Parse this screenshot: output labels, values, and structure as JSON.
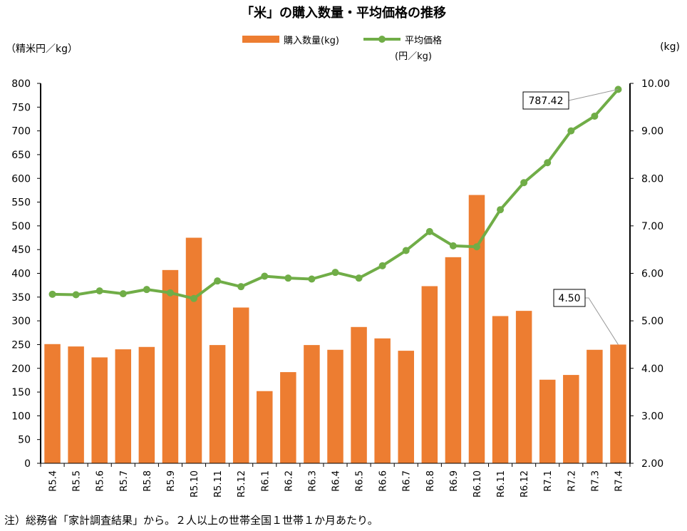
{
  "title": "「米」の購入数量・平均価格の推移",
  "note": "注）総務省「家計調査結果」から。２人以上の世帯全国１世帯１か月あたり。",
  "chart_data": {
    "type": "bar+line",
    "left_axis_label": "（精米円／kg）",
    "right_axis_label": "(kg)",
    "legend": {
      "bar": "購入数量(kg)",
      "line": "平均価格",
      "line_unit": "(円／kg)"
    },
    "categories": [
      "R5.4",
      "R5.5",
      "R5.6",
      "R5.7",
      "R5.8",
      "R5.9",
      "R5.10",
      "R5.11",
      "R5.12",
      "R6.1",
      "R6.2",
      "R6.3",
      "R6.4",
      "R6.5",
      "R6.6",
      "R6.7",
      "R6.8",
      "R6.9",
      "R6.10",
      "R6.11",
      "R6.12",
      "R7.1",
      "R7.2",
      "R7.3",
      "R7.4"
    ],
    "series": [
      {
        "name": "購入数量(kg)",
        "type": "bar",
        "axis": "right",
        "color": "#ED7D31",
        "values": [
          4.51,
          4.46,
          4.23,
          4.4,
          4.45,
          6.07,
          6.75,
          4.49,
          5.28,
          3.52,
          3.92,
          4.49,
          4.39,
          4.87,
          4.63,
          4.37,
          5.73,
          6.34,
          7.65,
          5.1,
          5.21,
          3.76,
          3.86,
          4.39,
          4.5
        ]
      },
      {
        "name": "平均価格",
        "type": "line",
        "axis": "left",
        "color": "#70AD47",
        "values": [
          356,
          355,
          363,
          357,
          366,
          359,
          347,
          384,
          372,
          394,
          390,
          388,
          402,
          390,
          416,
          448,
          488,
          458,
          456,
          534,
          591,
          633,
          700,
          731,
          787.42
        ]
      }
    ],
    "left_axis": {
      "min": 0,
      "max": 800,
      "step": 50
    },
    "right_axis": {
      "min": 2.0,
      "max": 10.0,
      "step": 1.0
    },
    "annotations": [
      {
        "label": "787.42",
        "series": "平均価格",
        "index": 24
      },
      {
        "label": "4.50",
        "series": "購入数量(kg)",
        "index": 24
      }
    ]
  }
}
